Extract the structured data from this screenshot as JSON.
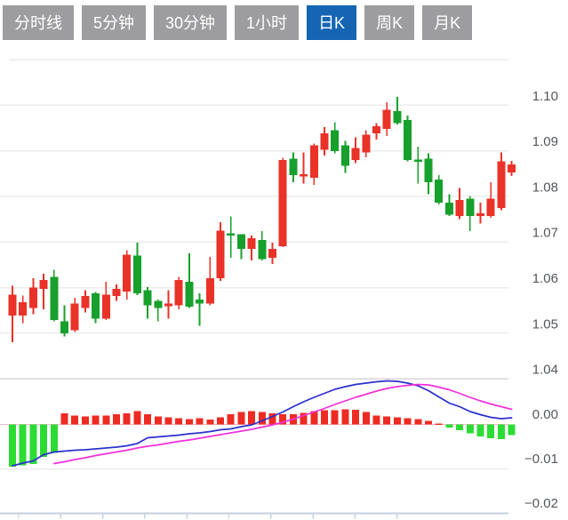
{
  "tabs": {
    "items": [
      {
        "id": "timeline",
        "label": "分时线",
        "active": false
      },
      {
        "id": "5min",
        "label": "5分钟",
        "active": false
      },
      {
        "id": "30min",
        "label": "30分钟",
        "active": false
      },
      {
        "id": "1hour",
        "label": "1小时",
        "active": false
      },
      {
        "id": "daily",
        "label": "日K",
        "active": true
      },
      {
        "id": "weekly",
        "label": "周K",
        "active": false
      },
      {
        "id": "monthly",
        "label": "月K",
        "active": false
      }
    ],
    "active_bg": "#1565b3",
    "inactive_bg": "#9d9da0",
    "text_color": "#ffffff"
  },
  "chart_data": {
    "type": "candlestick+macd",
    "title": "",
    "legend_position": "none",
    "grid": true,
    "price_axis": {
      "side": "right",
      "tick_labels": [
        "1.10",
        "1.09",
        "1.08",
        "1.07",
        "1.06",
        "1.05",
        "1.04"
      ],
      "tick_values": [
        1.1,
        1.09,
        1.08,
        1.07,
        1.06,
        1.05,
        1.04
      ],
      "range": [
        1.04,
        1.11
      ]
    },
    "macd_axis": {
      "side": "right",
      "tick_labels": [
        "0.00",
        "−0.01",
        "−0.02"
      ],
      "tick_values": [
        0.0,
        -0.01,
        -0.02
      ],
      "range": [
        -0.02,
        0.01
      ]
    },
    "candles_ohlc": [
      [
        1.0539,
        1.0604,
        1.048,
        1.0584
      ],
      [
        1.0539,
        1.0582,
        1.0522,
        1.0568
      ],
      [
        1.0555,
        1.062,
        1.0542,
        1.06
      ],
      [
        1.0597,
        1.063,
        1.0552,
        1.0617
      ],
      [
        1.0623,
        1.0639,
        1.0526,
        1.0529
      ],
      [
        1.0526,
        1.0561,
        1.0493,
        1.05
      ],
      [
        1.0506,
        1.0578,
        1.0503,
        1.0565
      ],
      [
        1.0555,
        1.0594,
        1.0545,
        1.0581
      ],
      [
        1.0587,
        1.059,
        1.0522,
        1.0532
      ],
      [
        1.0532,
        1.0613,
        1.0529,
        1.0584
      ],
      [
        1.0581,
        1.0607,
        1.0571,
        1.0597
      ],
      [
        1.0591,
        1.0682,
        1.0574,
        1.0672
      ],
      [
        1.067,
        1.0698,
        1.0583,
        1.0587
      ],
      [
        1.0594,
        1.0601,
        1.0532,
        1.0561
      ],
      [
        1.0571,
        1.0574,
        1.0526,
        1.0555
      ],
      [
        1.0559,
        1.0594,
        1.0532,
        1.0565
      ],
      [
        1.0561,
        1.0623,
        1.0552,
        1.0617
      ],
      [
        1.0613,
        1.0675,
        1.0555,
        1.0558
      ],
      [
        1.0574,
        1.0587,
        1.0516,
        1.0565
      ],
      [
        1.0565,
        1.0667,
        1.0561,
        1.062
      ],
      [
        1.062,
        1.0743,
        1.0615,
        1.0725
      ],
      [
        1.0719,
        1.0756,
        1.0665,
        1.0714
      ],
      [
        1.0717,
        1.0717,
        1.0662,
        1.0685
      ],
      [
        1.0685,
        1.0714,
        1.0659,
        1.0708
      ],
      [
        1.0704,
        1.0724,
        1.0659,
        1.0662
      ],
      [
        1.0665,
        1.0698,
        1.0652,
        1.0685
      ],
      [
        1.0691,
        1.0885,
        1.0689,
        1.088
      ],
      [
        1.0883,
        1.0896,
        1.0831,
        1.0847
      ],
      [
        1.0844,
        1.0896,
        1.0828,
        1.0849
      ],
      [
        1.0841,
        1.0916,
        1.0825,
        1.0912
      ],
      [
        1.0902,
        1.0952,
        1.0889,
        1.0938
      ],
      [
        1.0945,
        1.0963,
        1.0894,
        1.0899
      ],
      [
        1.0912,
        1.0922,
        1.0851,
        1.0867
      ],
      [
        1.088,
        1.0929,
        1.0873,
        1.0906
      ],
      [
        1.0896,
        1.0945,
        1.0886,
        1.0935
      ],
      [
        1.0938,
        1.0961,
        1.0925,
        1.0954
      ],
      [
        1.0948,
        1.1006,
        1.0932,
        1.099
      ],
      [
        1.0987,
        1.1018,
        1.0958,
        1.0961
      ],
      [
        1.0967,
        1.0977,
        1.0877,
        1.088
      ],
      [
        1.0881,
        1.0909,
        1.0828,
        1.0876
      ],
      [
        1.0883,
        1.0894,
        1.0805,
        1.0831
      ],
      [
        1.0837,
        1.0847,
        1.0782,
        1.0786
      ],
      [
        1.0786,
        1.0805,
        1.0757,
        1.076
      ],
      [
        1.0757,
        1.0818,
        1.075,
        1.0792
      ],
      [
        1.0795,
        1.0801,
        1.0724,
        1.0757
      ],
      [
        1.0757,
        1.0786,
        1.074,
        1.0763
      ],
      [
        1.0757,
        1.0831,
        1.0753,
        1.0795
      ],
      [
        1.0774,
        1.0896,
        1.077,
        1.0877
      ],
      [
        1.0852,
        1.0878,
        1.0845,
        1.087
      ]
    ],
    "macd": {
      "histogram": [
        -0.0095,
        -0.0092,
        -0.0089,
        -0.0073,
        -0.0064,
        0.0025,
        0.002,
        0.0018,
        0.002,
        0.002,
        0.0023,
        0.0025,
        0.003,
        0.0023,
        0.0018,
        0.0016,
        0.0014,
        0.0012,
        0.0014,
        0.0011,
        0.0016,
        0.0023,
        0.0028,
        0.003,
        0.0028,
        0.0025,
        0.0023,
        0.0023,
        0.0026,
        0.003,
        0.0032,
        0.0032,
        0.0034,
        0.0033,
        0.0028,
        0.002,
        0.0018,
        0.0016,
        0.0014,
        0.0012,
        0.0008,
        0.0002,
        -0.0007,
        -0.0013,
        -0.002,
        -0.0027,
        -0.0031,
        -0.0033,
        -0.0024
      ],
      "dif": [
        -0.0093,
        -0.0087,
        -0.0082,
        -0.0068,
        -0.0062,
        -0.006,
        -0.0058,
        -0.0057,
        -0.0055,
        -0.0053,
        -0.0051,
        -0.0048,
        -0.0043,
        -0.003,
        -0.0028,
        -0.0026,
        -0.0024,
        -0.0021,
        -0.0019,
        -0.0016,
        -0.0012,
        -0.001,
        -0.0005,
        -0.0001,
        0.0008,
        0.0018,
        0.0028,
        0.004,
        0.0051,
        0.0061,
        0.007,
        0.0079,
        0.0085,
        0.009,
        0.0093,
        0.0096,
        0.0098,
        0.0097,
        0.0093,
        0.0087,
        0.0076,
        0.0062,
        0.0048,
        0.004,
        0.0029,
        0.0022,
        0.0016,
        0.0013,
        0.0015
      ],
      "dea": [
        null,
        null,
        null,
        null,
        -0.0088,
        -0.0084,
        -0.0079,
        -0.0075,
        -0.007,
        -0.0066,
        -0.0062,
        -0.0058,
        -0.0053,
        -0.0049,
        -0.0046,
        -0.0042,
        -0.0038,
        -0.0035,
        -0.0031,
        -0.0027,
        -0.0023,
        -0.0019,
        -0.0015,
        -0.0011,
        -0.0006,
        -0.0001,
        0.0005,
        0.0012,
        0.002,
        0.0028,
        0.0036,
        0.0045,
        0.0053,
        0.0061,
        0.0068,
        0.0075,
        0.0081,
        0.0085,
        0.0088,
        0.009,
        0.0089,
        0.0084,
        0.0078,
        0.007,
        0.0061,
        0.0053,
        0.0046,
        0.004,
        0.0034
      ]
    },
    "colors": {
      "up": "#e93228",
      "down": "#17a02c",
      "hist_up": "#ee2b22",
      "hist_down": "#2bdc35",
      "dif_line": "#2b30cc",
      "dea_line": "#f230dc",
      "grid": "#ececec",
      "panel_divider": "#d6d6d6",
      "zero_line": "#f4b9c6",
      "x_axis": "#c6d0dd",
      "axis_label": "#53575b"
    }
  }
}
